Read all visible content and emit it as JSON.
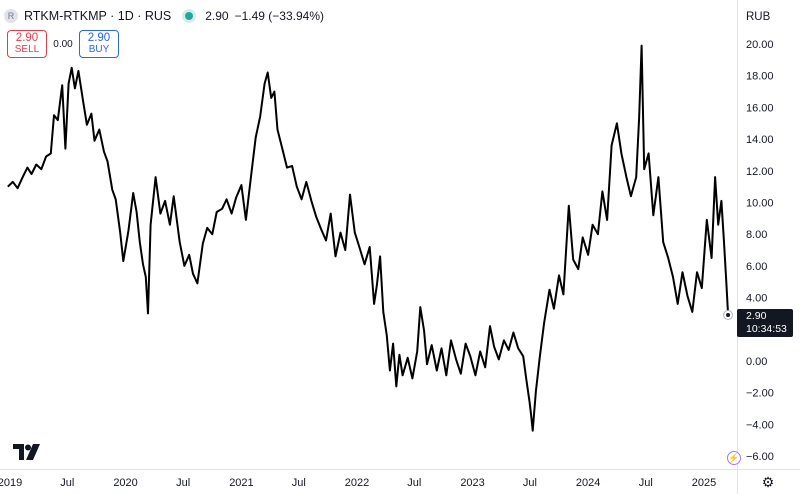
{
  "header": {
    "symbol_title": "RTKM-RTKMP · 1D · RUS",
    "logo_letter": "R",
    "price": "2.90",
    "change": "−1.49 (−33.94%)"
  },
  "trade": {
    "sell_price": "2.90",
    "sell_label": "SELL",
    "spread": "0.00",
    "buy_price": "2.90",
    "buy_label": "BUY"
  },
  "currency": "RUB",
  "last_tag": {
    "price": "2.90",
    "countdown": "10:34:53"
  },
  "colors": {
    "line": "#000000",
    "grid": "#f0f3fa",
    "axis_text": "#131722",
    "sell": "#f23645",
    "buy": "#2962ff",
    "live": "#26a69a"
  },
  "icons": [
    "tradingview-logo-icon",
    "settings-gear-icon",
    "lightning-icon"
  ],
  "chart_data": {
    "type": "line",
    "title": "",
    "xlabel": "",
    "ylabel": "RUB",
    "y_ticks": [
      20,
      18,
      16,
      14,
      12,
      10,
      8,
      6,
      4,
      2,
      0,
      -2,
      -4,
      -6
    ],
    "y_tick_labels": [
      "20.00",
      "18.00",
      "16.00",
      "14.00",
      "12.00",
      "10.00",
      "8.00",
      "6.00",
      "4.00",
      "2.00",
      "0.00",
      "−2.00",
      "−4.00",
      "−6.00"
    ],
    "x_tick_labels": [
      "2019",
      "Jul",
      "2020",
      "Jul",
      "2021",
      "Jul",
      "2022",
      "Jul",
      "2023",
      "Jul",
      "2024",
      "Jul",
      "2025"
    ],
    "x_tick_dates": [
      "2019-01-01",
      "2019-07-01",
      "2020-01-01",
      "2020-07-01",
      "2021-01-01",
      "2021-07-01",
      "2022-01-01",
      "2022-07-01",
      "2023-01-01",
      "2023-07-01",
      "2024-01-01",
      "2024-07-01",
      "2025-01-01"
    ],
    "ylim": [
      -6.5,
      20.5
    ],
    "grid": false,
    "series": [
      {
        "points": [
          [
            "2018-12-25",
            11.0
          ],
          [
            "2019-01-10",
            11.3
          ],
          [
            "2019-01-25",
            10.9
          ],
          [
            "2019-02-10",
            11.6
          ],
          [
            "2019-02-25",
            12.2
          ],
          [
            "2019-03-10",
            11.8
          ],
          [
            "2019-03-25",
            12.4
          ],
          [
            "2019-04-10",
            12.1
          ],
          [
            "2019-04-25",
            12.9
          ],
          [
            "2019-05-10",
            13.1
          ],
          [
            "2019-05-20",
            15.5
          ],
          [
            "2019-06-01",
            15.2
          ],
          [
            "2019-06-15",
            17.4
          ],
          [
            "2019-06-25",
            13.4
          ],
          [
            "2019-07-05",
            17.5
          ],
          [
            "2019-07-15",
            18.5
          ],
          [
            "2019-07-25",
            17.2
          ],
          [
            "2019-08-05",
            18.3
          ],
          [
            "2019-08-20",
            16.4
          ],
          [
            "2019-09-01",
            14.9
          ],
          [
            "2019-09-15",
            15.6
          ],
          [
            "2019-09-25",
            13.9
          ],
          [
            "2019-10-10",
            14.6
          ],
          [
            "2019-10-25",
            13.2
          ],
          [
            "2019-11-05",
            12.6
          ],
          [
            "2019-11-20",
            10.8
          ],
          [
            "2019-12-01",
            10.2
          ],
          [
            "2019-12-15",
            8.1
          ],
          [
            "2019-12-25",
            6.3
          ],
          [
            "2020-01-10",
            8.2
          ],
          [
            "2020-01-25",
            10.6
          ],
          [
            "2020-02-05",
            9.4
          ],
          [
            "2020-02-15",
            7.5
          ],
          [
            "2020-02-25",
            6.1
          ],
          [
            "2020-03-05",
            5.3
          ],
          [
            "2020-03-12",
            3.0
          ],
          [
            "2020-03-20",
            8.6
          ],
          [
            "2020-04-05",
            11.6
          ],
          [
            "2020-04-20",
            9.3
          ],
          [
            "2020-05-05",
            10.1
          ],
          [
            "2020-05-20",
            8.6
          ],
          [
            "2020-06-01",
            10.4
          ],
          [
            "2020-06-20",
            7.5
          ],
          [
            "2020-07-05",
            6.0
          ],
          [
            "2020-07-20",
            6.7
          ],
          [
            "2020-08-01",
            5.5
          ],
          [
            "2020-08-15",
            4.9
          ],
          [
            "2020-09-01",
            7.4
          ],
          [
            "2020-09-15",
            8.4
          ],
          [
            "2020-10-01",
            8.0
          ],
          [
            "2020-10-15",
            9.4
          ],
          [
            "2020-11-01",
            9.6
          ],
          [
            "2020-11-15",
            10.2
          ],
          [
            "2020-12-01",
            9.3
          ],
          [
            "2020-12-15",
            10.3
          ],
          [
            "2021-01-01",
            11.1
          ],
          [
            "2021-01-15",
            8.9
          ],
          [
            "2021-02-01",
            11.8
          ],
          [
            "2021-02-15",
            14.1
          ],
          [
            "2021-03-01",
            15.4
          ],
          [
            "2021-03-15",
            17.5
          ],
          [
            "2021-03-25",
            18.2
          ],
          [
            "2021-04-05",
            16.6
          ],
          [
            "2021-04-15",
            17.0
          ],
          [
            "2021-04-25",
            14.6
          ],
          [
            "2021-05-10",
            13.4
          ],
          [
            "2021-05-25",
            12.2
          ],
          [
            "2021-06-10",
            12.3
          ],
          [
            "2021-06-25",
            11.0
          ],
          [
            "2021-07-10",
            10.2
          ],
          [
            "2021-07-25",
            11.3
          ],
          [
            "2021-08-10",
            10.1
          ],
          [
            "2021-08-25",
            9.1
          ],
          [
            "2021-09-10",
            8.3
          ],
          [
            "2021-09-25",
            7.6
          ],
          [
            "2021-10-10",
            9.3
          ],
          [
            "2021-10-25",
            6.6
          ],
          [
            "2021-11-10",
            8.1
          ],
          [
            "2021-11-25",
            7.0
          ],
          [
            "2021-12-10",
            10.5
          ],
          [
            "2021-12-25",
            8.1
          ],
          [
            "2022-01-10",
            7.1
          ],
          [
            "2022-01-25",
            6.1
          ],
          [
            "2022-02-10",
            7.2
          ],
          [
            "2022-02-24",
            3.6
          ],
          [
            "2022-03-05",
            4.8
          ],
          [
            "2022-03-15",
            6.6
          ],
          [
            "2022-03-25",
            3.1
          ],
          [
            "2022-04-05",
            1.6
          ],
          [
            "2022-04-15",
            -0.6
          ],
          [
            "2022-04-25",
            1.1
          ],
          [
            "2022-05-05",
            -1.6
          ],
          [
            "2022-05-15",
            0.4
          ],
          [
            "2022-05-25",
            -0.9
          ],
          [
            "2022-06-10",
            0.2
          ],
          [
            "2022-06-25",
            -1.1
          ],
          [
            "2022-07-10",
            0.6
          ],
          [
            "2022-07-20",
            3.4
          ],
          [
            "2022-08-01",
            1.9
          ],
          [
            "2022-08-10",
            -0.2
          ],
          [
            "2022-08-25",
            1.0
          ],
          [
            "2022-09-10",
            -0.6
          ],
          [
            "2022-09-25",
            0.8
          ],
          [
            "2022-10-10",
            -0.9
          ],
          [
            "2022-10-25",
            1.3
          ],
          [
            "2022-11-10",
            0.1
          ],
          [
            "2022-11-25",
            -0.8
          ],
          [
            "2022-12-10",
            1.1
          ],
          [
            "2022-12-25",
            0.3
          ],
          [
            "2023-01-10",
            -0.9
          ],
          [
            "2023-01-25",
            0.6
          ],
          [
            "2023-02-10",
            -0.4
          ],
          [
            "2023-02-25",
            2.2
          ],
          [
            "2023-03-10",
            0.9
          ],
          [
            "2023-03-25",
            0.1
          ],
          [
            "2023-04-10",
            1.3
          ],
          [
            "2023-04-25",
            0.7
          ],
          [
            "2023-05-10",
            1.8
          ],
          [
            "2023-05-25",
            0.8
          ],
          [
            "2023-06-10",
            0.3
          ],
          [
            "2023-06-20",
            -1.2
          ],
          [
            "2023-06-30",
            -2.6
          ],
          [
            "2023-07-05",
            -3.4
          ],
          [
            "2023-07-10",
            -4.4
          ],
          [
            "2023-07-20",
            -1.9
          ],
          [
            "2023-08-01",
            0.2
          ],
          [
            "2023-08-15",
            2.4
          ],
          [
            "2023-09-01",
            4.5
          ],
          [
            "2023-09-15",
            3.3
          ],
          [
            "2023-10-01",
            5.4
          ],
          [
            "2023-10-15",
            4.2
          ],
          [
            "2023-11-01",
            9.8
          ],
          [
            "2023-11-15",
            6.4
          ],
          [
            "2023-12-01",
            5.8
          ],
          [
            "2023-12-15",
            7.8
          ],
          [
            "2024-01-01",
            6.7
          ],
          [
            "2024-01-15",
            8.6
          ],
          [
            "2024-02-01",
            8.0
          ],
          [
            "2024-02-15",
            10.7
          ],
          [
            "2024-03-01",
            8.9
          ],
          [
            "2024-03-15",
            13.6
          ],
          [
            "2024-04-01",
            15.0
          ],
          [
            "2024-04-15",
            13.1
          ],
          [
            "2024-05-01",
            11.6
          ],
          [
            "2024-05-15",
            10.4
          ],
          [
            "2024-06-01",
            11.6
          ],
          [
            "2024-06-10",
            15.3
          ],
          [
            "2024-06-18",
            19.9
          ],
          [
            "2024-06-26",
            12.1
          ],
          [
            "2024-07-10",
            13.1
          ],
          [
            "2024-07-25",
            9.2
          ],
          [
            "2024-08-10",
            11.6
          ],
          [
            "2024-08-25",
            7.5
          ],
          [
            "2024-09-10",
            6.5
          ],
          [
            "2024-09-25",
            5.3
          ],
          [
            "2024-10-10",
            3.6
          ],
          [
            "2024-10-25",
            5.6
          ],
          [
            "2024-11-10",
            4.1
          ],
          [
            "2024-11-25",
            3.1
          ],
          [
            "2024-12-10",
            5.6
          ],
          [
            "2024-12-25",
            4.6
          ],
          [
            "2025-01-10",
            8.9
          ],
          [
            "2025-01-25",
            6.5
          ],
          [
            "2025-02-05",
            11.6
          ],
          [
            "2025-02-15",
            8.6
          ],
          [
            "2025-02-25",
            10.1
          ],
          [
            "2025-03-05",
            7.6
          ],
          [
            "2025-03-12",
            5.1
          ],
          [
            "2025-03-18",
            2.9
          ]
        ]
      }
    ],
    "last_value": 2.9
  }
}
